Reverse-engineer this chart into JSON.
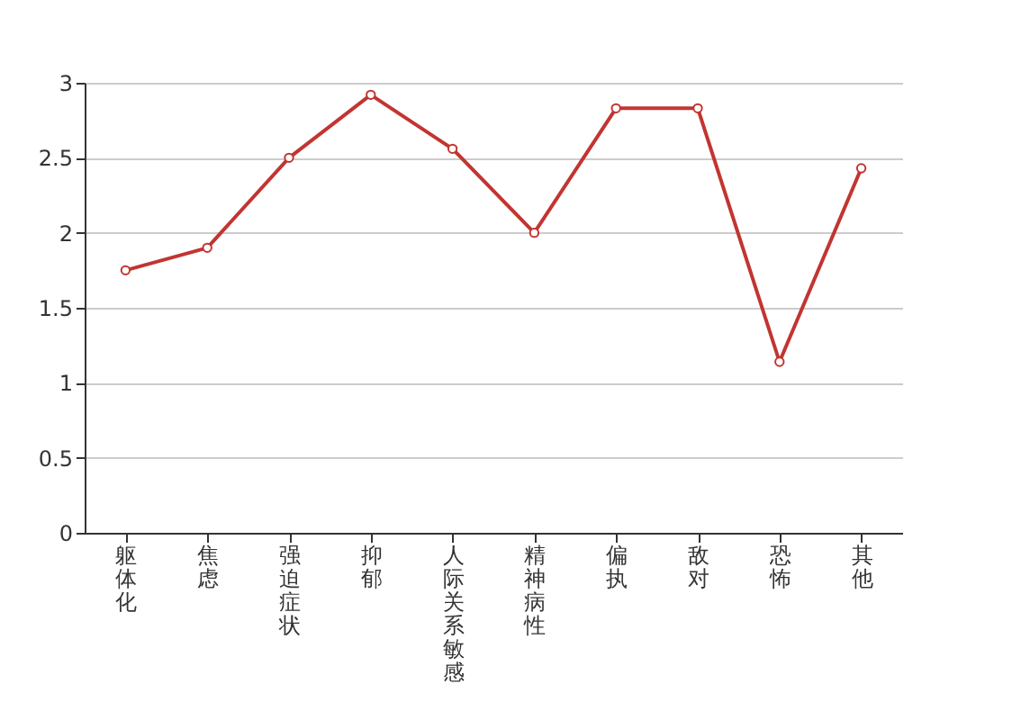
{
  "chart_data": {
    "type": "line",
    "categories": [
      "躯体化",
      "焦虑",
      "强迫症状",
      "抑郁",
      "人际关系敏感",
      "精神病性",
      "偏执",
      "敌对",
      "恐怖",
      "其他"
    ],
    "series": [
      {
        "color": "#c23531",
        "values": [
          1.75,
          1.9,
          2.5,
          2.92,
          2.56,
          2.0,
          2.83,
          2.83,
          1.14,
          2.43
        ]
      }
    ],
    "ylim": [
      0,
      3
    ],
    "yticks": [
      0,
      0.5,
      1,
      1.5,
      2,
      2.5,
      3
    ],
    "grid": "y",
    "marker": "circle",
    "line_style": "solid",
    "legend": false
  }
}
